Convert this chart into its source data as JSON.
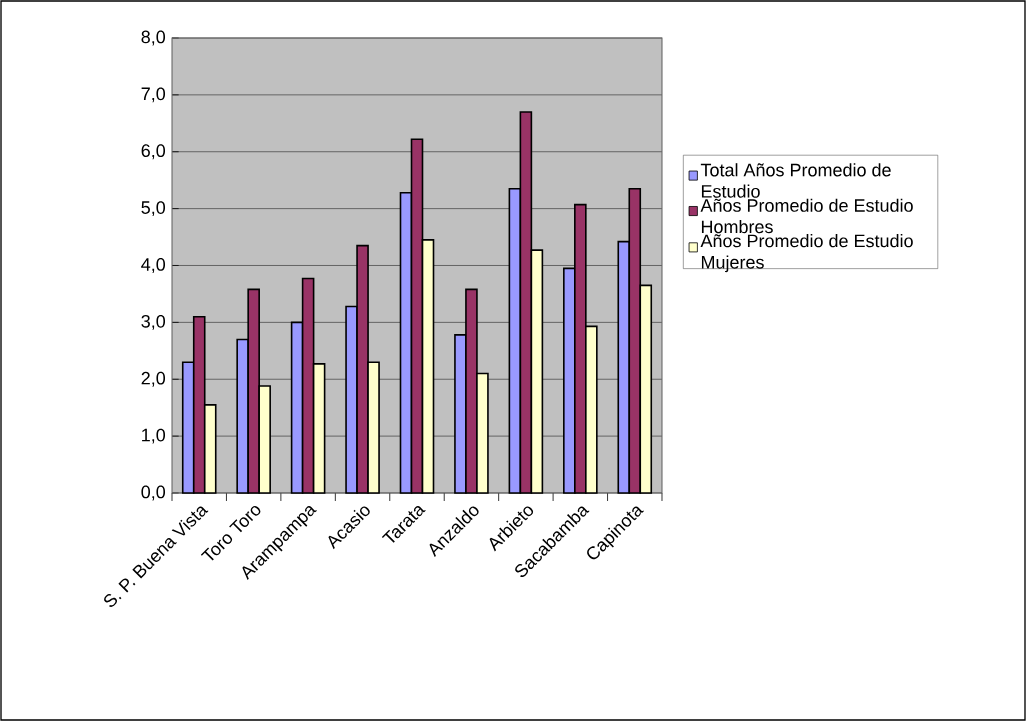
{
  "chart_data": {
    "type": "bar",
    "categories": [
      "S. P. Buena Vista",
      "Toro Toro",
      "Arampampa",
      "Acasio",
      "Tarata",
      "Anzaldo",
      "Arbieto",
      "Sacabamba",
      "Capinota"
    ],
    "series": [
      {
        "name": "Total Años Promedio de Estudio",
        "color": "#9999ff",
        "values": [
          2.3,
          2.7,
          3.0,
          3.28,
          5.28,
          2.78,
          5.35,
          3.95,
          4.42
        ]
      },
      {
        "name": "Años Promedio de Estudio Hombres",
        "color": "#993366",
        "values": [
          3.1,
          3.58,
          3.77,
          4.35,
          6.22,
          3.58,
          6.7,
          5.07,
          5.35
        ]
      },
      {
        "name": "Años Promedio de Estudio Mujeres",
        "color": "#ffffcc",
        "values": [
          1.55,
          1.88,
          2.27,
          2.3,
          4.45,
          2.1,
          4.27,
          2.93,
          3.65
        ]
      }
    ],
    "ylim": [
      0,
      8
    ],
    "yticks": [
      {
        "value": 0,
        "label": "0,0"
      },
      {
        "value": 1,
        "label": "1,0"
      },
      {
        "value": 2,
        "label": "2,0"
      },
      {
        "value": 3,
        "label": "3,0"
      },
      {
        "value": 4,
        "label": "4,0"
      },
      {
        "value": 5,
        "label": "5,0"
      },
      {
        "value": 6,
        "label": "6,0"
      },
      {
        "value": 7,
        "label": "7,0"
      },
      {
        "value": 8,
        "label": "8,0"
      }
    ],
    "grid": "y",
    "legend": "right"
  }
}
